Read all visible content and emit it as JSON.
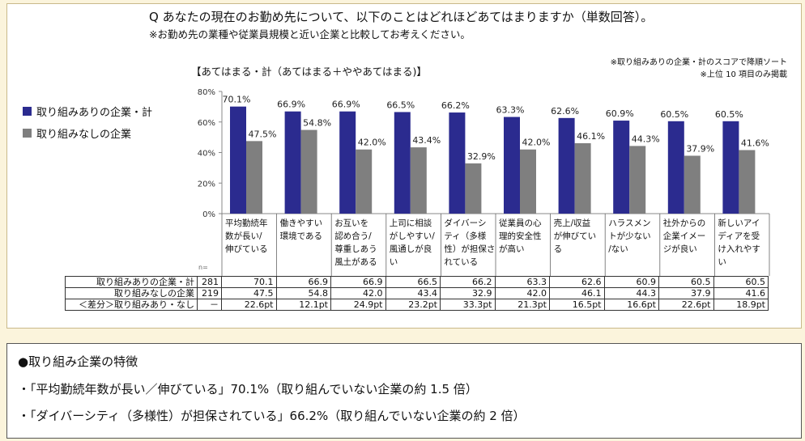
{
  "question": "Q あなたの現在のお勤め先について、以下のことはどれほどあてはまりますか（単数回答）。",
  "subnote": "※お勤め先の業種や従業員規模と近い企業と比較してお考えください。",
  "scope_label": "【あてはまる・計（あてはまる＋ややあてはまる)】",
  "sort_note": [
    "※取り組みありの企業・計のスコアで降順ソート",
    "※上位 10 項目のみ掲載"
  ],
  "n_label": "n=",
  "colors": {
    "series_a": "#2b2b8f",
    "series_b": "#7f7f7f",
    "axis": "#888888"
  },
  "chart_data": {
    "type": "bar",
    "yticks": [
      "0%",
      "20%",
      "40%",
      "60%",
      "80%"
    ],
    "ylim": [
      0,
      80
    ],
    "grid": false,
    "legend_position": "left",
    "categories": [
      [
        "平均勤続年",
        "数が長い/",
        "伸びている"
      ],
      [
        "働きやすい",
        "環境である"
      ],
      [
        "お互いを",
        "認め合う/",
        "尊重しあう",
        "風土がある"
      ],
      [
        "上司に相談",
        "がしやすい/",
        "風通しが良",
        "い"
      ],
      [
        "ダイバーシ",
        "ティ（多様",
        "性）が担保さ",
        "れている"
      ],
      [
        "従業員の心",
        "理的安全性",
        "が高い"
      ],
      [
        "売上/収益",
        "が伸びてい",
        "る"
      ],
      [
        "ハラスメン",
        "トが少ない",
        "/ない"
      ],
      [
        "社外からの",
        "企業イメー",
        "ジが良い"
      ],
      [
        "新しいアイ",
        "ディアを受",
        "け入れやす",
        "い"
      ]
    ],
    "series": [
      {
        "name": "取り組みありの企業・計",
        "values": [
          70.1,
          66.9,
          66.9,
          66.5,
          66.2,
          63.3,
          62.6,
          60.9,
          60.5,
          60.5
        ],
        "labels": [
          "70.1%",
          "66.9%",
          "66.9%",
          "66.5%",
          "66.2%",
          "63.3%",
          "62.6%",
          "60.9%",
          "60.5%",
          "60.5%"
        ]
      },
      {
        "name": "取り組みなしの企業",
        "values": [
          47.5,
          54.8,
          42.0,
          43.4,
          32.9,
          42.0,
          46.1,
          44.3,
          37.9,
          41.6
        ],
        "labels": [
          "47.5%",
          "54.8%",
          "42.0%",
          "43.4%",
          "32.9%",
          "42.0%",
          "46.1%",
          "44.3%",
          "37.9%",
          "41.6%"
        ]
      }
    ],
    "table": [
      {
        "label": "取り組みありの企業・計",
        "n": "281",
        "values": [
          "70.1",
          "66.9",
          "66.9",
          "66.5",
          "66.2",
          "63.3",
          "62.6",
          "60.9",
          "60.5",
          "60.5"
        ]
      },
      {
        "label": "取り組みなしの企業",
        "n": "219",
        "values": [
          "47.5",
          "54.8",
          "42.0",
          "43.4",
          "32.9",
          "42.0",
          "46.1",
          "44.3",
          "37.9",
          "41.6"
        ]
      },
      {
        "label": "＜差分＞取り組みあり・なし",
        "n": "－",
        "values": [
          "22.6pt",
          "12.1pt",
          "24.9pt",
          "23.2pt",
          "33.3pt",
          "21.3pt",
          "16.5pt",
          "16.6pt",
          "22.6pt",
          "18.9pt"
        ]
      }
    ]
  },
  "notes": {
    "heading": "●取り組み企業の特徴",
    "lines": [
      "・「平均勤続年数が長い／伸びている」70.1%（取り組んでいない企業の約 1.5 倍）",
      "・「ダイバーシティ（多様性）が担保されている」66.2%（取り組んでいない企業の約 2 倍）"
    ]
  }
}
